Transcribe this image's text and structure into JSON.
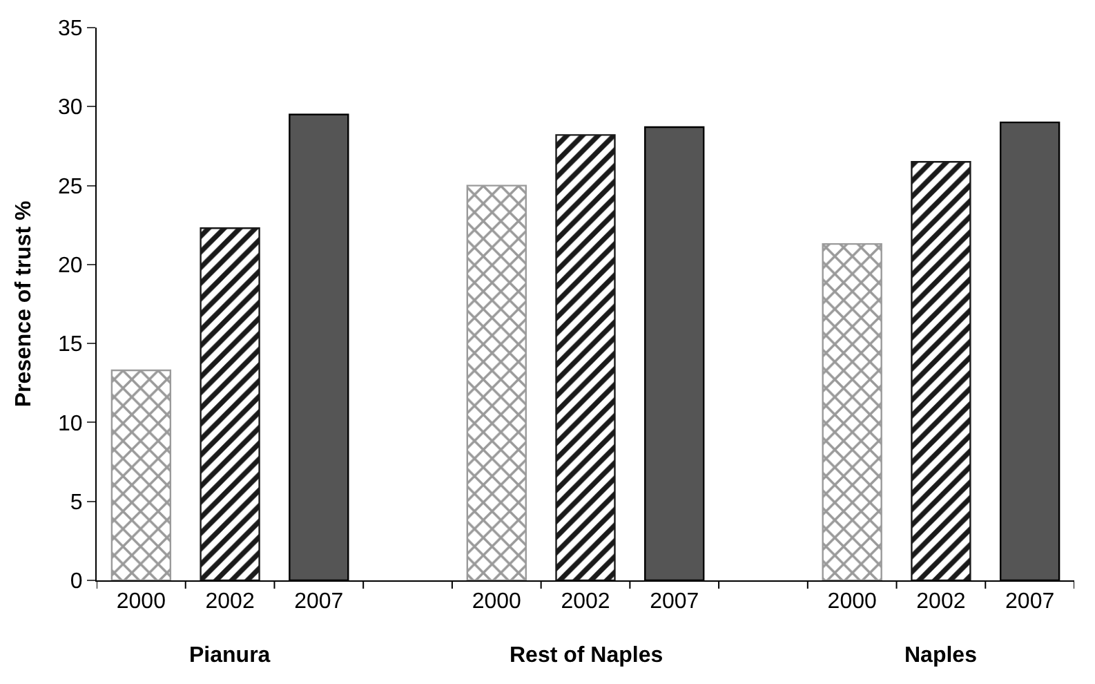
{
  "chart_data": {
    "type": "bar",
    "ylabel": "Presence of trust %",
    "categories": [
      "2000",
      "2002",
      "2007",
      null,
      "2000",
      "2002",
      "2007",
      null,
      "2000",
      "2002",
      "2007"
    ],
    "values": [
      13.3,
      22.3,
      29.5,
      null,
      25.0,
      28.2,
      28.7,
      null,
      21.3,
      26.5,
      29.0
    ],
    "colors": [
      "#9a9a9a",
      "#1a1a1a",
      "#555555",
      null,
      "#9a9a9a",
      "#1a1a1a",
      "#555555",
      null,
      "#9a9a9a",
      "#1a1a1a",
      "#555555"
    ],
    "ylim": [
      0,
      35
    ],
    "yticks": [
      0,
      5,
      10,
      15,
      20,
      25,
      30,
      35
    ],
    "annotations": [
      "Pianura",
      "Rest of Naples",
      "Naples"
    ]
  }
}
